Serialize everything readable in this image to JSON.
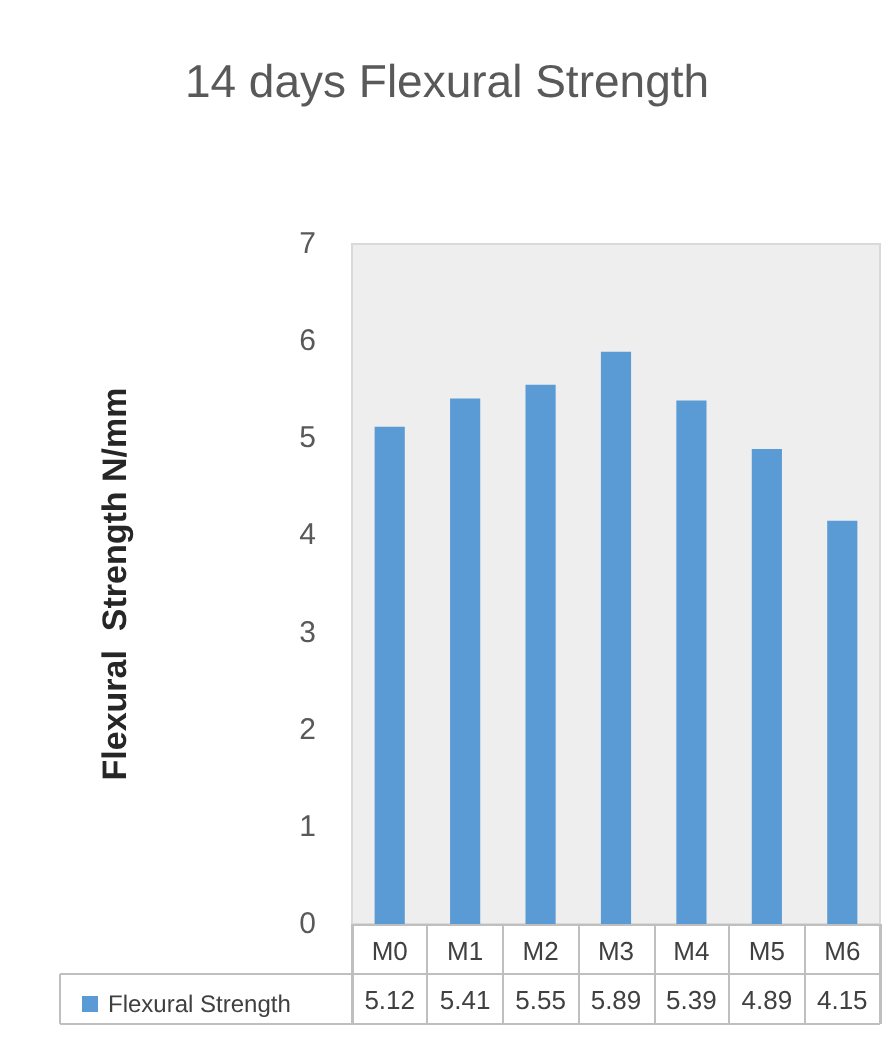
{
  "chart_data": {
    "type": "bar",
    "title": "14 days Flexural Strength",
    "ylabel": "Flexural  Strength N/mm",
    "categories": [
      "M0",
      "M1",
      "M2",
      "M3",
      "M4",
      "M5",
      "M6"
    ],
    "series": [
      {
        "name": "Flexural Strength",
        "color": "#5b9bd5",
        "values": [
          5.12,
          5.41,
          5.55,
          5.89,
          5.39,
          4.89,
          4.15
        ]
      }
    ],
    "ylim": [
      0,
      7
    ],
    "yticks": [
      0,
      1,
      2,
      3,
      4,
      5,
      6,
      7
    ],
    "grid": false,
    "legend": "bottom",
    "data_labels": true
  }
}
